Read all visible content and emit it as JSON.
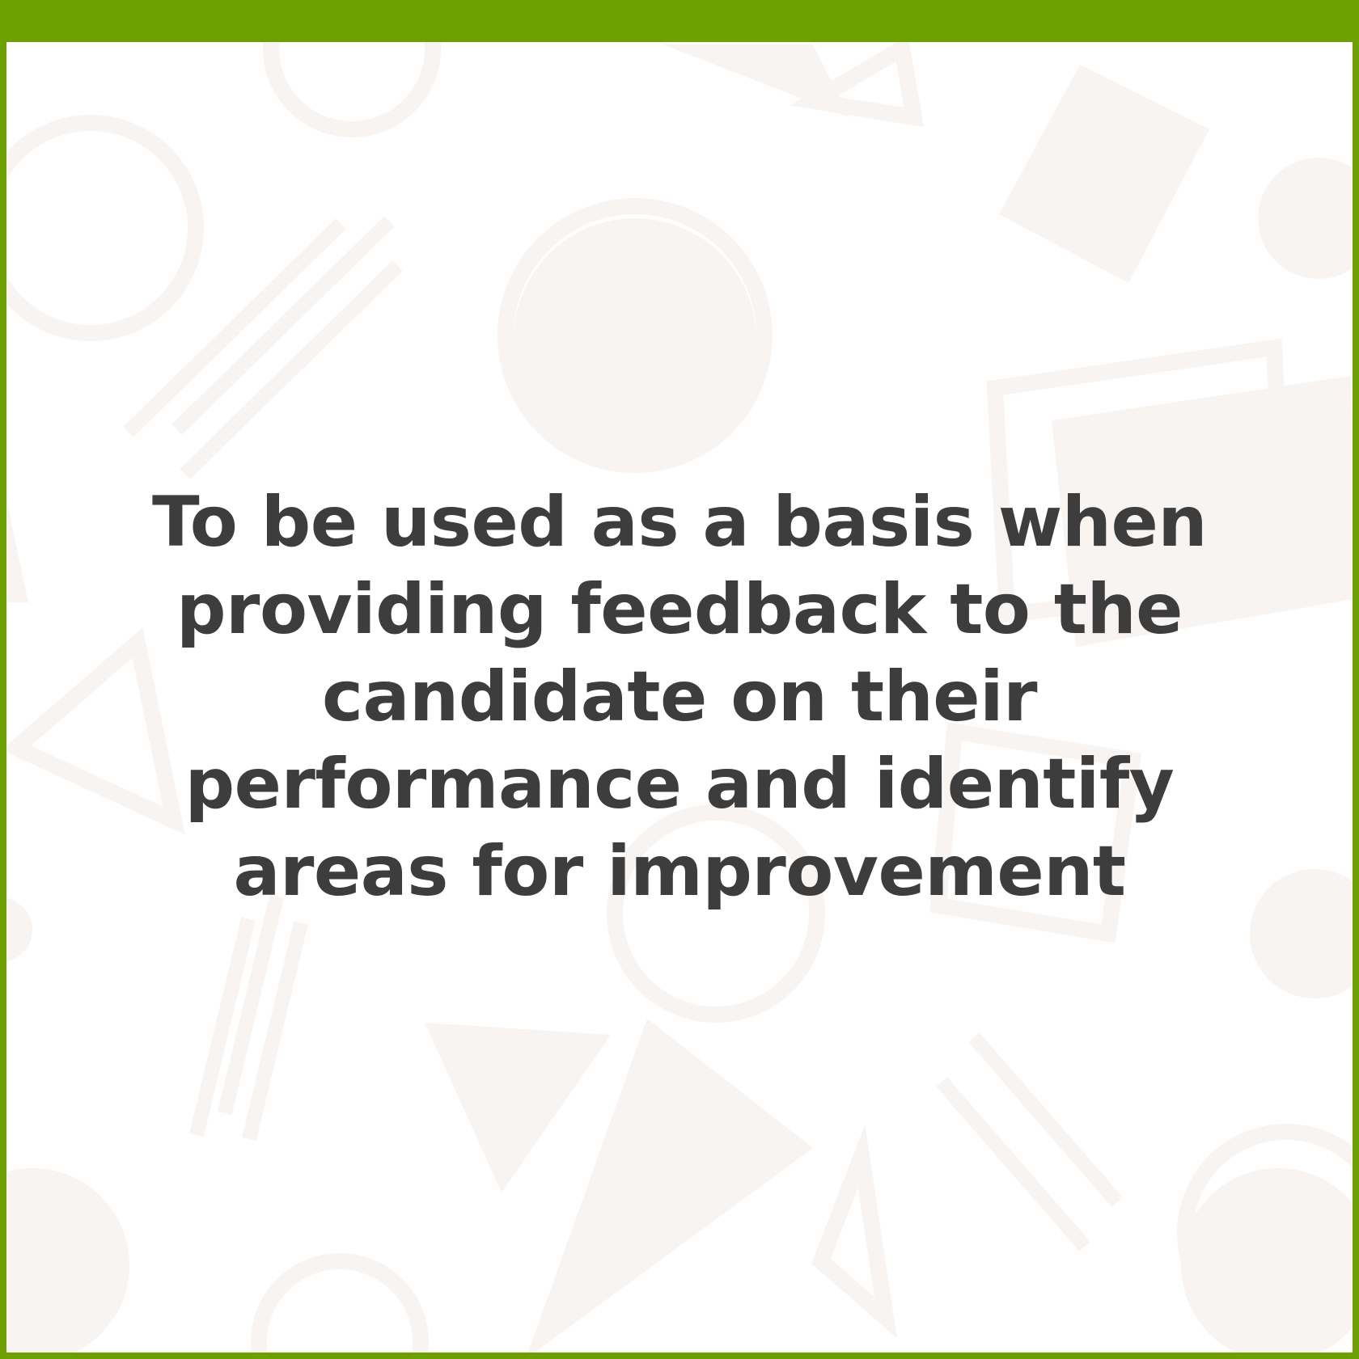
{
  "colors": {
    "accent": "#6ca000",
    "text": "#3d3d3d",
    "background": "#ffffff",
    "pattern": "#f8f4f2"
  },
  "card": {
    "message": "To be used as a basis when providing feedback to the candidate on their performance and identify areas for improvement"
  }
}
